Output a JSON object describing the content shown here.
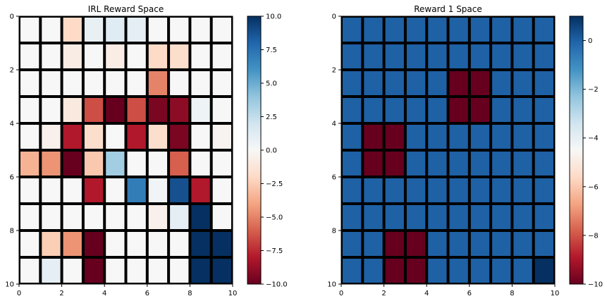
{
  "chart_data": [
    {
      "type": "heatmap",
      "title": "IRL Reward Space",
      "x_ticks": [
        "0",
        "2",
        "4",
        "6",
        "8",
        "10"
      ],
      "y_ticks": [
        "0",
        "2",
        "4",
        "6",
        "8",
        "10"
      ],
      "xlim": [
        0,
        10
      ],
      "ylim": [
        10,
        0
      ],
      "colormap": "RdBu",
      "vmin": -10,
      "vmax": 10,
      "colorbar_ticks": [
        "10.0",
        "7.5",
        "5.0",
        "2.5",
        "0.0",
        "−2.5",
        "−5.0",
        "−7.5",
        "−10.0"
      ],
      "colorbar_values": [
        10,
        7.5,
        5,
        2.5,
        0,
        -2.5,
        -5,
        -7.5,
        -10
      ],
      "grid": [
        [
          0,
          0,
          -2,
          0.8,
          1.2,
          1,
          0,
          0,
          0,
          0
        ],
        [
          0,
          0,
          -0.8,
          0,
          -0.7,
          0,
          -2,
          -1.8,
          0,
          0
        ],
        [
          0,
          0,
          0,
          0,
          0,
          0,
          -5,
          0,
          0,
          0
        ],
        [
          0,
          0,
          -1,
          -6.5,
          -10,
          -6.5,
          -9.5,
          -9,
          0.5,
          0
        ],
        [
          0,
          -0.5,
          -8,
          -1.8,
          0,
          -8,
          -1.8,
          -9.5,
          0,
          -0.3
        ],
        [
          -3.5,
          -4.5,
          -10,
          -2.7,
          3.5,
          0,
          0,
          -6,
          0,
          0
        ],
        [
          0,
          0,
          0,
          -8,
          0,
          7,
          0.3,
          8.8,
          -8,
          0
        ],
        [
          0,
          0,
          0,
          0,
          0,
          0,
          -0.5,
          1,
          10,
          0
        ],
        [
          0,
          -2.5,
          -4.5,
          -10,
          0,
          0,
          0,
          0,
          10,
          10
        ],
        [
          0,
          1,
          0,
          -10,
          0,
          0,
          0,
          0,
          10,
          10
        ]
      ]
    },
    {
      "type": "heatmap",
      "title": "Reward 1 Space",
      "x_ticks": [
        "0",
        "2",
        "4",
        "6",
        "8",
        "10"
      ],
      "y_ticks": [
        "0",
        "2",
        "4",
        "6",
        "8",
        "10"
      ],
      "xlim": [
        0,
        10
      ],
      "ylim": [
        10,
        0
      ],
      "colormap": "RdBu",
      "vmin": -10,
      "vmax": 1,
      "colorbar_ticks": [
        "0",
        "−2",
        "−4",
        "−6",
        "−8",
        "−10"
      ],
      "colorbar_values": [
        0,
        -2,
        -4,
        -6,
        -8,
        -10
      ],
      "grid": [
        [
          0,
          0,
          0,
          0,
          0,
          0,
          0,
          0,
          0,
          0
        ],
        [
          0,
          0,
          0,
          0,
          0,
          0,
          0,
          0,
          0,
          0
        ],
        [
          0,
          0,
          0,
          0,
          0,
          -10,
          -10,
          0,
          0,
          0
        ],
        [
          0,
          0,
          0,
          0,
          0,
          -10,
          -10,
          0,
          0,
          0
        ],
        [
          0,
          -10,
          -10,
          0,
          0,
          0,
          0,
          0,
          0,
          0
        ],
        [
          0,
          -10,
          -10,
          0,
          0,
          0,
          0,
          0,
          0,
          0
        ],
        [
          0,
          0,
          0,
          0,
          0,
          0,
          0,
          0,
          0,
          0
        ],
        [
          0,
          0,
          0,
          0,
          0,
          0,
          0,
          0,
          0,
          0
        ],
        [
          0,
          0,
          -10,
          -10,
          0,
          0,
          0,
          0,
          0,
          0
        ],
        [
          0,
          0,
          -10,
          -10,
          0,
          0,
          0,
          0,
          0,
          1
        ]
      ]
    }
  ]
}
